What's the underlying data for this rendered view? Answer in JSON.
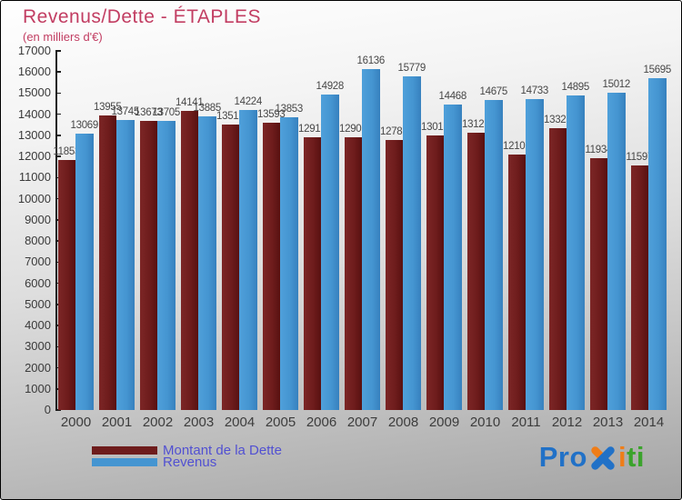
{
  "header": {
    "title": "Revenus/Dette - ÉTAPLES",
    "subtitle": "(en milliers d'€)"
  },
  "legend": {
    "dette_label": "Montant de la Dette",
    "revenus_label": "Revenus"
  },
  "logo": {
    "pro": "Pro",
    "i": "i",
    "ti": "ti"
  },
  "colors": {
    "title": "#c23d62",
    "dette": "#6e1c1c",
    "dette_gradient_left": "#7c2626",
    "dette_gradient_right": "#581111",
    "revenus": "#4595d1",
    "revenus_gradient_left": "#4fa0da",
    "revenus_gradient_right": "#3781be",
    "legend_text": "#5150d2",
    "value_label_text": "#474747",
    "axis_text": "#3a3a3a",
    "logo_blue": "#2171c7",
    "logo_orange": "#ef7d18",
    "logo_green": "#3ba32c"
  },
  "chart_data": {
    "type": "bar",
    "title": "Revenus/Dette - ÉTAPLES",
    "subtitle": "(en milliers d'€)",
    "categories": [
      "2000",
      "2001",
      "2002",
      "2003",
      "2004",
      "2005",
      "2006",
      "2007",
      "2008",
      "2009",
      "2010",
      "2011",
      "2012",
      "2013",
      "2014"
    ],
    "series": [
      {
        "name": "Montant de la Dette",
        "color": "#6e1c1c",
        "values": [
          11853,
          13955,
          13673,
          14141,
          13517,
          13593,
          12917,
          12903,
          12783,
          13017,
          13121,
          12105,
          13325,
          11934,
          11597
        ]
      },
      {
        "name": "Revenus",
        "color": "#4595d1",
        "values": [
          13069,
          13745,
          13705,
          13885,
          14224,
          13853,
          14928,
          16136,
          15779,
          14468,
          14675,
          14733,
          14895,
          15012,
          15695
        ]
      }
    ],
    "xlabel": "",
    "ylabel": "",
    "ylim": [
      0,
      17000
    ],
    "ytick_step": 1000,
    "grid": false,
    "value_labels": true,
    "legend_position": "bottom-left"
  }
}
